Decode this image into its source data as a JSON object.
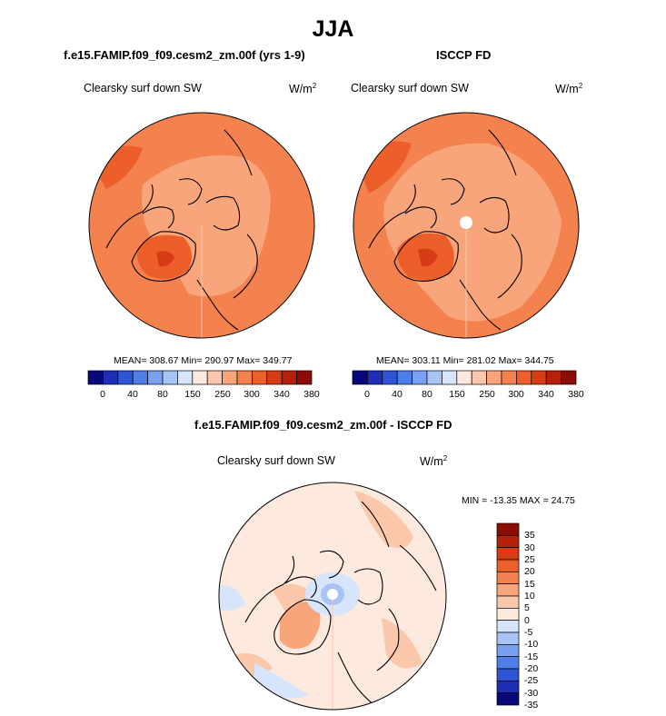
{
  "figure": {
    "title": "JJA",
    "units": "W/m",
    "units_exponent": "2"
  },
  "panels": [
    {
      "title": "f.e15.FAMIP.f09_f09.cesm2_zm.00f (yrs 1-9)",
      "field": "Clearsky surf down SW",
      "stats": "MEAN= 308.67  Min= 290.97  Max= 349.77",
      "colorbar_ticks": [
        "0",
        "40",
        "80",
        "150",
        "250",
        "300",
        "340",
        "380"
      ]
    },
    {
      "title": "ISCCP FD",
      "field": "Clearsky surf down SW",
      "stats": "MEAN= 303.11  Min= 281.02  Max= 344.75",
      "colorbar_ticks": [
        "0",
        "40",
        "80",
        "150",
        "250",
        "300",
        "340",
        "380"
      ]
    },
    {
      "title": "f.e15.FAMIP.f09_f09.cesm2_zm.00f - ISCCP FD",
      "field": "Clearsky surf down SW",
      "stats": "MIN = -13.35 MAX =  24.75",
      "colorbar_ticks": [
        "35",
        "30",
        "25",
        "20",
        "15",
        "10",
        "5",
        "0",
        "-5",
        "-10",
        "-15",
        "-20",
        "-25",
        "-30",
        "-35"
      ]
    }
  ],
  "palettes": {
    "absolute": [
      "#08087a",
      "#1e2fb5",
      "#2f55d6",
      "#4f7ee8",
      "#7aa1ef",
      "#a7c4f5",
      "#d6e5fb",
      "#fde9dd",
      "#fbc8ab",
      "#f9a57c",
      "#f4824f",
      "#ec5f2b",
      "#d63d15",
      "#b5200a",
      "#8a0e06"
    ],
    "difference": [
      "#8a0e06",
      "#b5200a",
      "#d63d15",
      "#ec5f2b",
      "#f4824f",
      "#f9a57c",
      "#fbc8ab",
      "#fde9dd",
      "#d6e5fb",
      "#a7c4f5",
      "#7aa1ef",
      "#4f7ee8",
      "#2f55d6",
      "#1e2fb5",
      "#08087a"
    ]
  }
}
